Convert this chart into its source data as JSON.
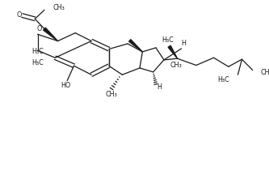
{
  "bg_color": "#ffffff",
  "line_color": "#1a1a1a",
  "line_width": 0.9,
  "font_size": 5.8,
  "figsize": [
    3.33,
    2.11
  ],
  "dpi": 100,
  "xlim": [
    0,
    9.5
  ],
  "ylim": [
    0,
    6.3
  ]
}
